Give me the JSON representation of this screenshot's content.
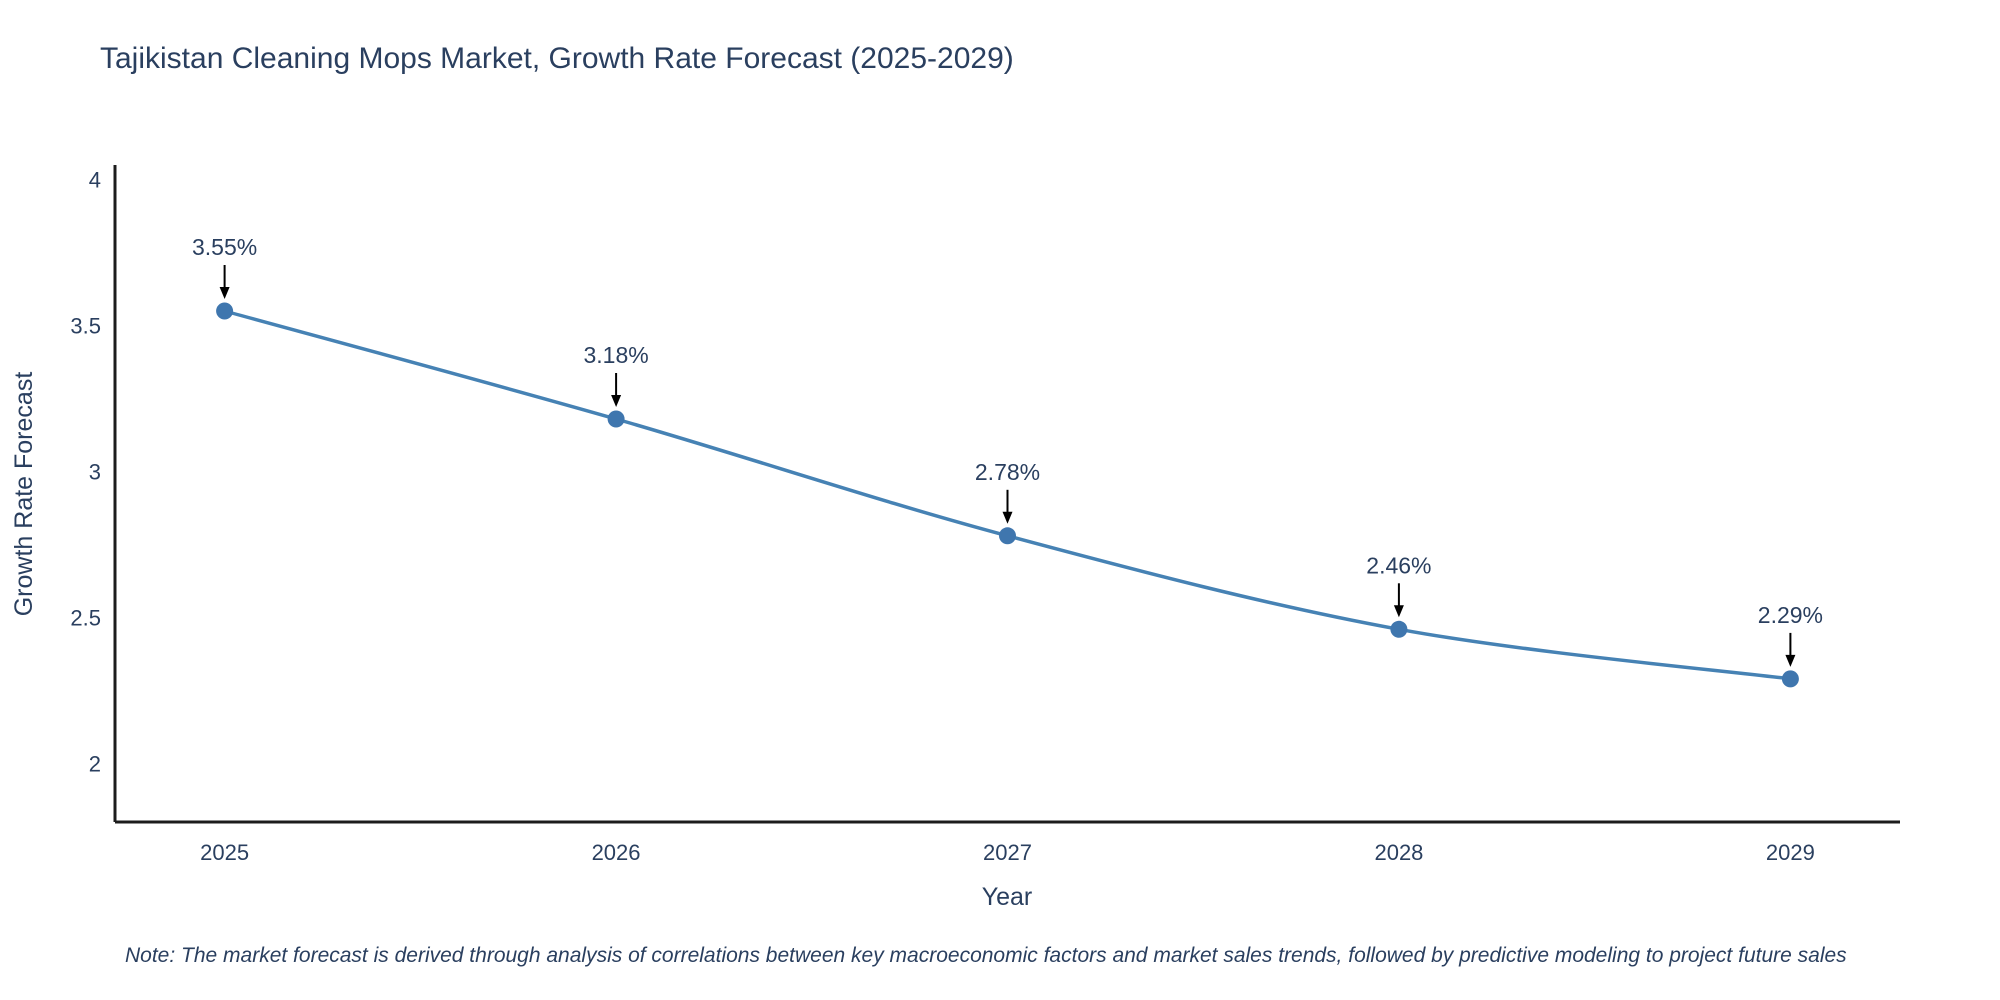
{
  "title": "Tajikistan Cleaning Mops Market, Growth Rate Forecast (2025-2029)",
  "note": "Note: The market forecast is derived through analysis of correlations between key macroeconomic factors and market sales trends, followed by predictive modeling to project future sales",
  "colors": {
    "line": "#4682b4",
    "marker": "#3f76ae",
    "text": "#2a3f5f",
    "axis": "#1c1c1c",
    "annotation_arrow": "#000000"
  },
  "chart_data": {
    "type": "line",
    "title": "Tajikistan Cleaning Mops Market, Growth Rate Forecast (2025-2029)",
    "x": [
      2025,
      2026,
      2027,
      2028,
      2029
    ],
    "values": [
      3.55,
      3.18,
      2.78,
      2.46,
      2.29
    ],
    "labels": [
      "3.55%",
      "3.18%",
      "2.78%",
      "2.46%",
      "2.29%"
    ],
    "xlabel": "Year",
    "ylabel": "Growth Rate Forecast",
    "xticks": [
      2025,
      2026,
      2027,
      2028,
      2029
    ],
    "yticks": [
      2,
      2.5,
      3,
      3.5,
      4
    ],
    "xlim": [
      2024.72,
      2029.28
    ],
    "ylim": [
      1.8,
      4.05
    ],
    "grid": false,
    "legend": false,
    "line_shape": "spline"
  }
}
